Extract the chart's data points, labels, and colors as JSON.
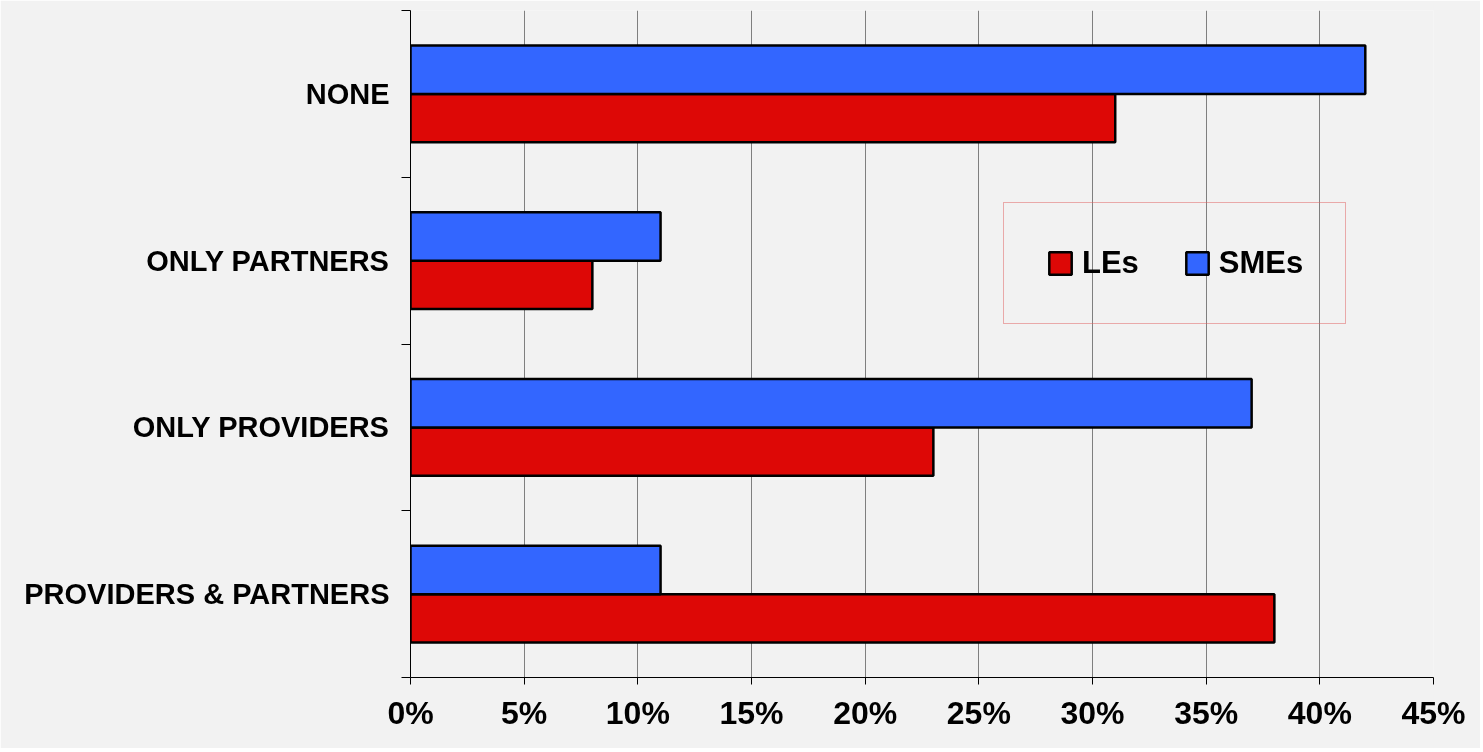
{
  "chart_data": {
    "type": "bar",
    "orientation": "horizontal",
    "categories": [
      "NONE",
      "ONLY PARTNERS",
      "ONLY PROVIDERS",
      "PROVIDERS & PARTNERS"
    ],
    "series": [
      {
        "name": "LEs",
        "color": "#dd0806",
        "values": [
          31,
          8,
          23,
          38
        ]
      },
      {
        "name": "SMEs",
        "color": "#3366ff",
        "values": [
          42,
          11,
          37,
          11
        ]
      }
    ],
    "xlim": [
      0,
      45
    ],
    "xticks": [
      {
        "value": 0,
        "label": "0%"
      },
      {
        "value": 5,
        "label": "5%"
      },
      {
        "value": 10,
        "label": "10%"
      },
      {
        "value": 15,
        "label": "15%"
      },
      {
        "value": 20,
        "label": "20%"
      },
      {
        "value": 25,
        "label": "25%"
      },
      {
        "value": 30,
        "label": "30%"
      },
      {
        "value": 35,
        "label": "35%"
      },
      {
        "value": 40,
        "label": "40%"
      },
      {
        "value": 45,
        "label": "45%"
      }
    ],
    "grid": "x",
    "legend": "right"
  }
}
